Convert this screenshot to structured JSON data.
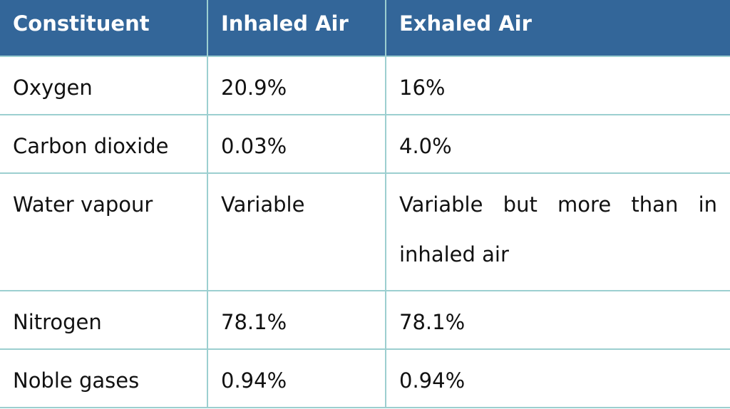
{
  "table": {
    "header": [
      "Constituent",
      "Inhaled Air",
      "Exhaled Air"
    ],
    "rows": [
      [
        "Oxygen",
        "20.9%",
        "16%"
      ],
      [
        "Carbon dioxide",
        "0.03%",
        "4.0%"
      ],
      [
        "Water vapour",
        "Variable",
        "Variable but more than in inhaled air"
      ],
      [
        "Nitrogen",
        "78.1%",
        "78.1%"
      ],
      [
        "Noble gases",
        "0.94%",
        "0.94%"
      ]
    ]
  }
}
